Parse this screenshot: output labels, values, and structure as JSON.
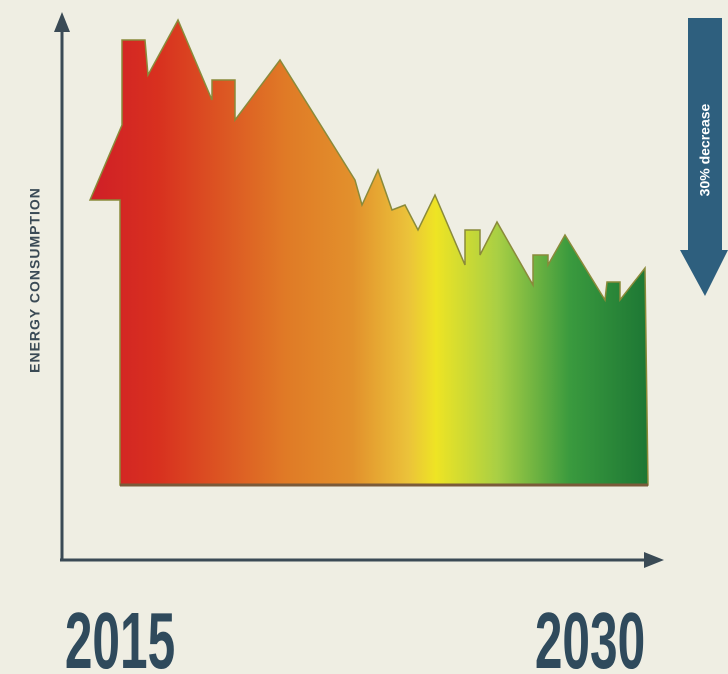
{
  "y_axis_label": "ENERGY CONSUMPTION",
  "x_axis": {
    "start": "2015",
    "end": "2030"
  },
  "callout": "30% decrease"
}
